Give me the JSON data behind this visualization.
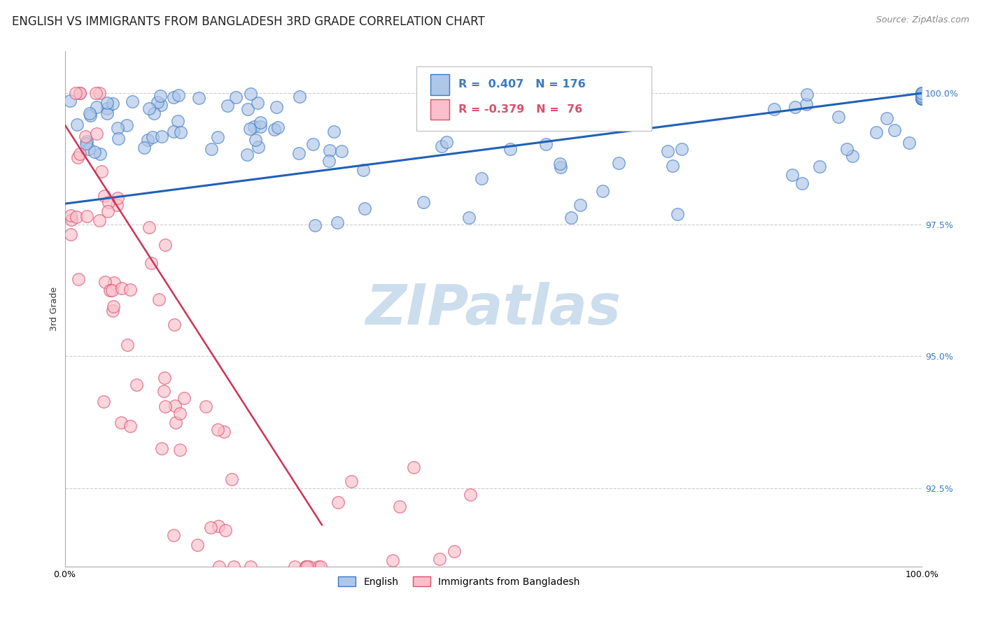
{
  "title": "ENGLISH VS IMMIGRANTS FROM BANGLADESH 3RD GRADE CORRELATION CHART",
  "source": "Source: ZipAtlas.com",
  "ylabel": "3rd Grade",
  "legend_english": "English",
  "legend_bangladesh": "Immigrants from Bangladesh",
  "r_english": 0.407,
  "n_english": 176,
  "r_bangladesh": -0.379,
  "n_bangladesh": 76,
  "blue_face_color": "#aec6e8",
  "blue_edge_color": "#3a7abf",
  "pink_face_color": "#f9bfca",
  "pink_edge_color": "#d94f6e",
  "blue_line_color": "#2060b8",
  "pink_line_color": "#cc3355",
  "watermark_color": "#ccdded",
  "background_color": "#ffffff",
  "title_fontsize": 12,
  "axis_label_fontsize": 9,
  "tick_fontsize": 9,
  "legend_fontsize": 10,
  "source_fontsize": 9,
  "y_min": 91.0,
  "y_max": 100.8,
  "x_min": 0.0,
  "x_max": 1.0,
  "yticks": [
    92.5,
    95.0,
    97.5,
    100.0
  ],
  "ytick_labels": [
    "92.5%",
    "95.0%",
    "97.5%",
    "100.0%"
  ]
}
